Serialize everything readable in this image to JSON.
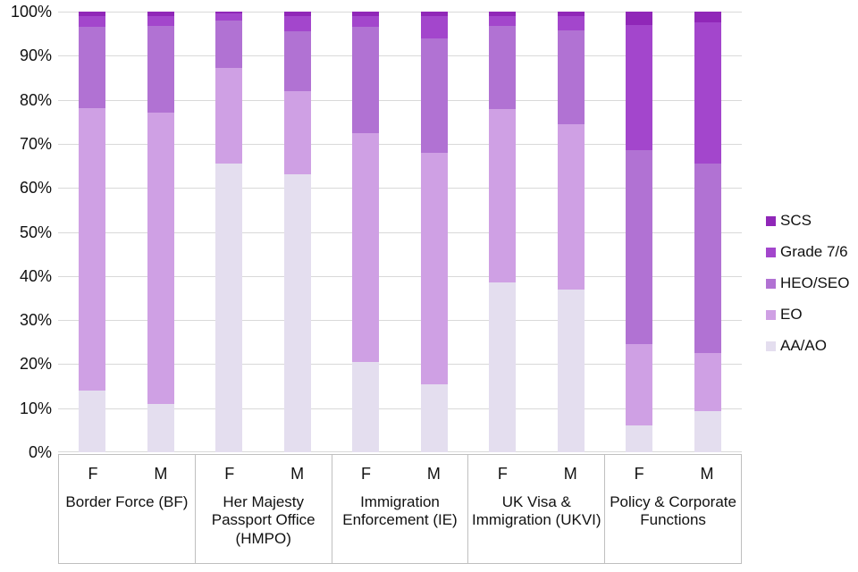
{
  "chart_data": {
    "type": "bar",
    "variant": "100%-stacked-column",
    "title": "",
    "xlabel": "",
    "ylabel": "",
    "ylim": [
      0,
      100
    ],
    "grid": true,
    "gridline_color": "#d9d9d9",
    "axis_border_color": "#bfbfbf",
    "legend_position": "right",
    "yticks": [
      "0%",
      "10%",
      "20%",
      "30%",
      "40%",
      "50%",
      "60%",
      "70%",
      "80%",
      "90%",
      "100%"
    ],
    "categories": [
      "Border Force (BF)",
      "Her Majesty Passport Office (HMPO)",
      "Immigration Enforcement (IE)",
      "UK Visa & Immigration (UKVI)",
      "Policy & Corporate Functions"
    ],
    "sub_categories": [
      "F",
      "M"
    ],
    "bar_order": [
      "BF-F",
      "BF-M",
      "HMPO-F",
      "HMPO-M",
      "IE-F",
      "IE-M",
      "UKVI-F",
      "UKVI-M",
      "Policy-F",
      "Policy-M"
    ],
    "series": [
      {
        "name": "AA/AO",
        "color": "#e4deef",
        "values": [
          14.0,
          11.0,
          65.5,
          63.0,
          20.5,
          15.5,
          38.5,
          37.0,
          6.0,
          9.3
        ]
      },
      {
        "name": "EO",
        "color": "#cfa0e4",
        "values": [
          64.0,
          66.0,
          21.8,
          19.0,
          52.0,
          52.5,
          39.3,
          37.5,
          18.5,
          13.2
        ]
      },
      {
        "name": "HEO/SEO",
        "color": "#b172d3",
        "values": [
          18.5,
          19.8,
          10.7,
          13.5,
          24.0,
          26.0,
          19.0,
          21.2,
          44.0,
          43.0
        ]
      },
      {
        "name": "Grade 7/6",
        "color": "#a346cc",
        "values": [
          2.5,
          2.2,
          1.5,
          3.5,
          2.5,
          5.0,
          2.2,
          3.3,
          28.5,
          32.0
        ]
      },
      {
        "name": "SCS",
        "color": "#9027b8",
        "values": [
          1.0,
          1.0,
          0.5,
          1.0,
          1.0,
          1.0,
          1.0,
          1.0,
          3.0,
          2.5
        ]
      }
    ],
    "legend_items": [
      "SCS",
      "Grade 7/6",
      "HEO/SEO",
      "EO",
      "AA/AO"
    ]
  }
}
